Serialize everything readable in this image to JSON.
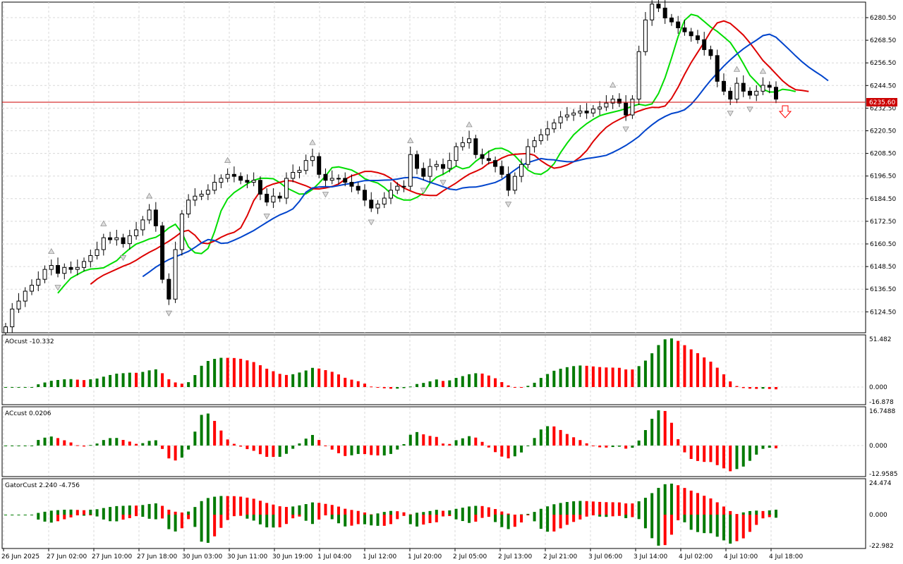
{
  "colors": {
    "bull_hist": "#007a00",
    "bear_hist": "#ff0000",
    "ma_green": "#00dd00",
    "ma_red": "#dd0000",
    "ma_blue": "#0044cc",
    "price_line": "#cc0000",
    "grid": "#d8d8d8"
  },
  "main_panel": {
    "price_levels": [
      "6280.50",
      "6268.50",
      "6256.50",
      "6244.50",
      "6232.50",
      "6220.50",
      "6208.50",
      "6196.50",
      "6184.50",
      "6172.50",
      "6160.50",
      "6148.50",
      "6136.50",
      "6124.50"
    ],
    "current_price": "6235.60",
    "signal_arrow": "arrow-down-icon"
  },
  "ao_panel": {
    "title": "AOcust -10.332",
    "scale": [
      "51.482",
      "0.000",
      "-16.878"
    ]
  },
  "ac_panel": {
    "title": "ACcust 0.0206",
    "scale": [
      "16.7488",
      "0.000",
      "-12.9585"
    ]
  },
  "gator_panel": {
    "title": "GatorCust 2.240 -4.756",
    "scale": [
      "24.474",
      "0.000",
      "-22.982"
    ]
  },
  "time_axis": {
    "labels": [
      "26 Jun 2025",
      "27 Jun 02:00",
      "27 Jun 10:00",
      "27 Jun 18:00",
      "30 Jun 03:00",
      "30 Jun 11:00",
      "30 Jun 19:00",
      "1 Jul 04:00",
      "1 Jul 12:00",
      "1 Jul 20:00",
      "2 Jul 05:00",
      "2 Jul 13:00",
      "2 Jul 21:00",
      "3 Jul 06:00",
      "3 Jul 14:00",
      "4 Jul 02:00",
      "4 Jul 10:00",
      "4 Jul 18:00"
    ]
  },
  "chart_data": {
    "type": "candlestick",
    "price_axis": {
      "min": 6118,
      "max": 6285
    },
    "candles_close": [
      6121,
      6130,
      6134,
      6139,
      6142,
      6145,
      6150,
      6152,
      6148,
      6151,
      6150,
      6151,
      6154,
      6157,
      6160,
      6166,
      6165,
      6166,
      6163,
      6167,
      6170,
      6175,
      6180,
      6172,
      6145,
      6135,
      6160,
      6178,
      6185,
      6187,
      6188,
      6190,
      6194,
      6196,
      6198,
      6197,
      6195,
      6194,
      6195,
      6188,
      6184,
      6187,
      6186,
      6196,
      6199,
      6200,
      6205,
      6207,
      6198,
      6195,
      6196,
      6196,
      6194,
      6192,
      6190,
      6185,
      6181,
      6183,
      6186,
      6190,
      6192,
      6192,
      6208,
      6201,
      6197,
      6202,
      6203,
      6201,
      6205,
      6212,
      6214,
      6216,
      6208,
      6206,
      6205,
      6202,
      6198,
      6190,
      6197,
      6203,
      6212,
      6215,
      6218,
      6221,
      6224,
      6227,
      6228,
      6229,
      6230,
      6229,
      6231,
      6232,
      6234,
      6236,
      6234,
      6228,
      6236,
      6260,
      6276,
      6284,
      6282,
      6277,
      6275,
      6272,
      6270,
      6268,
      6266,
      6261,
      6258,
      6245,
      6240,
      6236,
      6244,
      6240,
      6238,
      6240,
      6243,
      6242,
      6236
    ]
  }
}
